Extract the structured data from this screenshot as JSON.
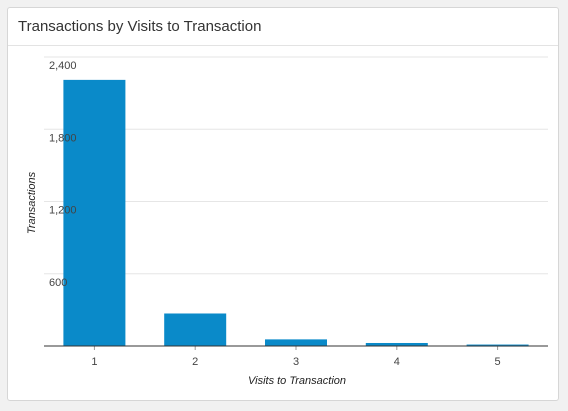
{
  "card": {
    "title": "Transactions by Visits to Transaction"
  },
  "colors": {
    "bar": "#0a8ac9",
    "grid": "#e6e6e6",
    "axis": "#333333"
  },
  "chart_data": {
    "type": "bar",
    "title": "Transactions by Visits to Transaction",
    "xlabel": "Visits to Transaction",
    "ylabel": "Transactions",
    "categories": [
      "1",
      "2",
      "3",
      "4",
      "5"
    ],
    "values": [
      2210,
      270,
      55,
      25,
      12
    ],
    "ylim": [
      0,
      2400
    ],
    "yticks": [
      600,
      1200,
      1800,
      2400
    ],
    "ytick_labels": [
      "600",
      "1,200",
      "1,800",
      "2,400"
    ],
    "grid": true,
    "legend": "none"
  }
}
